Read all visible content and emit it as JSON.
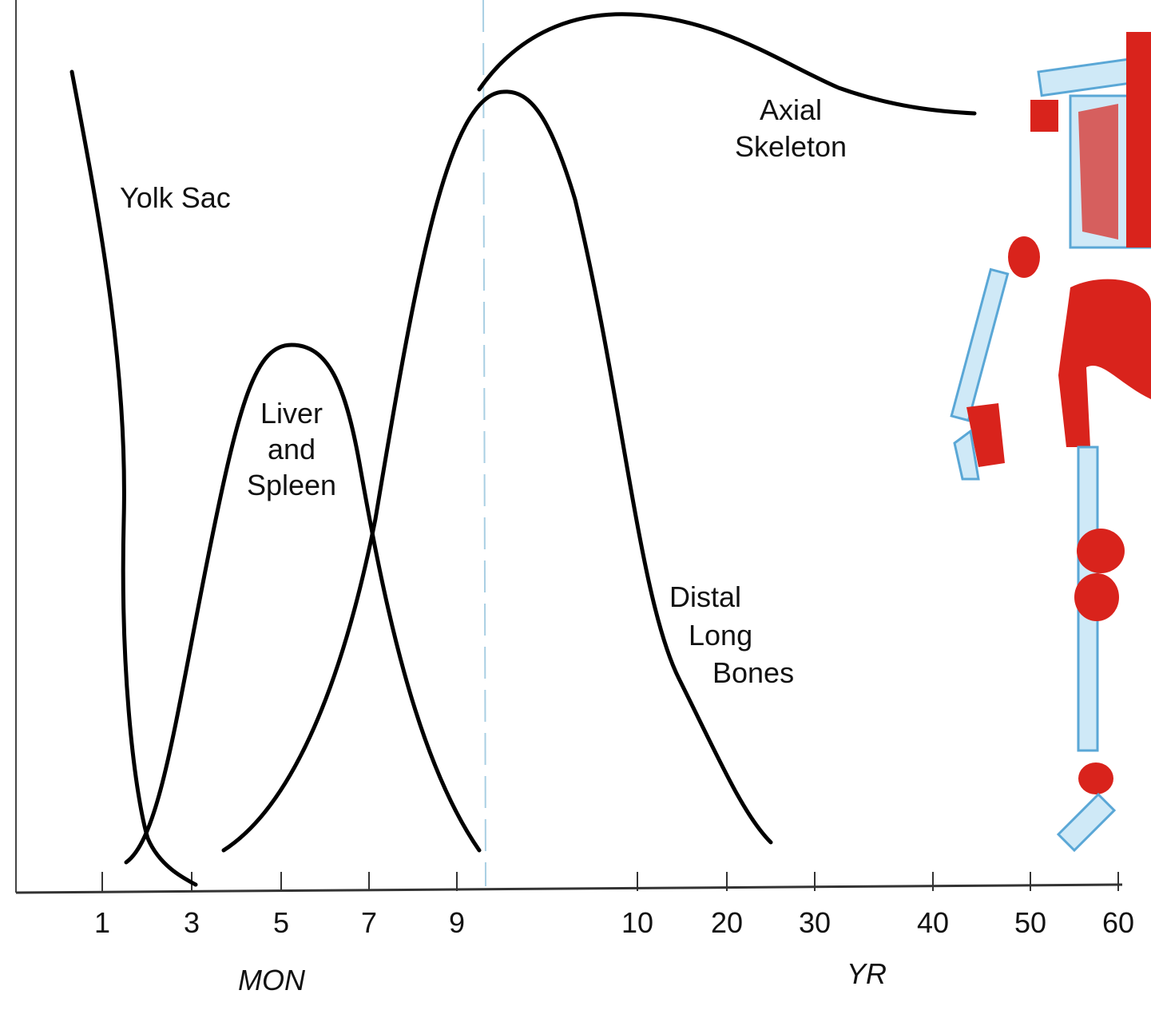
{
  "axis": {
    "ticks": [
      "1",
      "3",
      "5",
      "7",
      "9",
      "10",
      "20",
      "30",
      "40",
      "50",
      "60"
    ],
    "months_label": "MON",
    "years_label": "YR"
  },
  "curves": [
    {
      "label_lines": [
        "Yolk Sac"
      ]
    },
    {
      "label_lines": [
        "Liver",
        "and",
        "Spleen"
      ]
    },
    {
      "label_lines": [
        "Distal",
        "Long",
        "Bones"
      ]
    },
    {
      "label_lines": [
        "Axial",
        "Skeleton"
      ]
    }
  ]
}
